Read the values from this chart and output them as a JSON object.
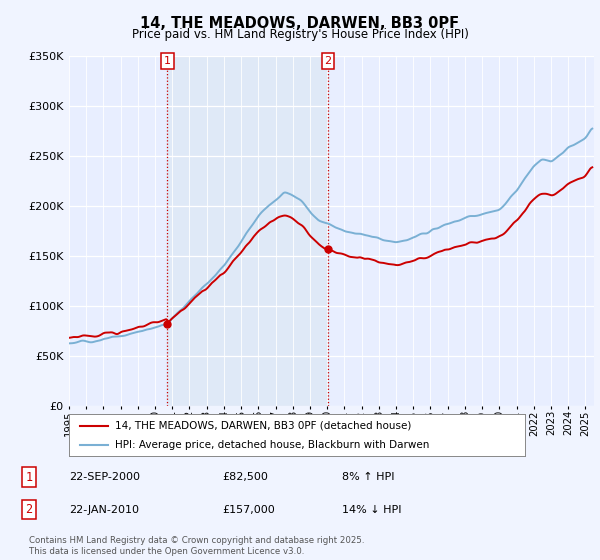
{
  "title": "14, THE MEADOWS, DARWEN, BB3 0PF",
  "subtitle": "Price paid vs. HM Land Registry's House Price Index (HPI)",
  "legend_line1": "14, THE MEADOWS, DARWEN, BB3 0PF (detached house)",
  "legend_line2": "HPI: Average price, detached house, Blackburn with Darwen",
  "annotation1_label": "1",
  "annotation1_date": "22-SEP-2000",
  "annotation1_price": "£82,500",
  "annotation1_hpi": "8% ↑ HPI",
  "annotation2_label": "2",
  "annotation2_date": "22-JAN-2010",
  "annotation2_price": "£157,000",
  "annotation2_hpi": "14% ↓ HPI",
  "footnote": "Contains HM Land Registry data © Crown copyright and database right 2025.\nThis data is licensed under the Open Government Licence v3.0.",
  "ylim": [
    0,
    350000
  ],
  "yticks": [
    0,
    50000,
    100000,
    150000,
    200000,
    250000,
    300000,
    350000
  ],
  "hpi_color": "#7ab0d4",
  "price_color": "#cc0000",
  "vline_color": "#cc0000",
  "bg_color": "#f0f4ff",
  "plot_bg": "#e8eeff",
  "shade_color": "#dce8f5",
  "marker1_x": 2000.72,
  "marker1_y": 82500,
  "marker2_x": 2010.05,
  "marker2_y": 157000,
  "xmin": 1995,
  "xmax": 2025.5
}
